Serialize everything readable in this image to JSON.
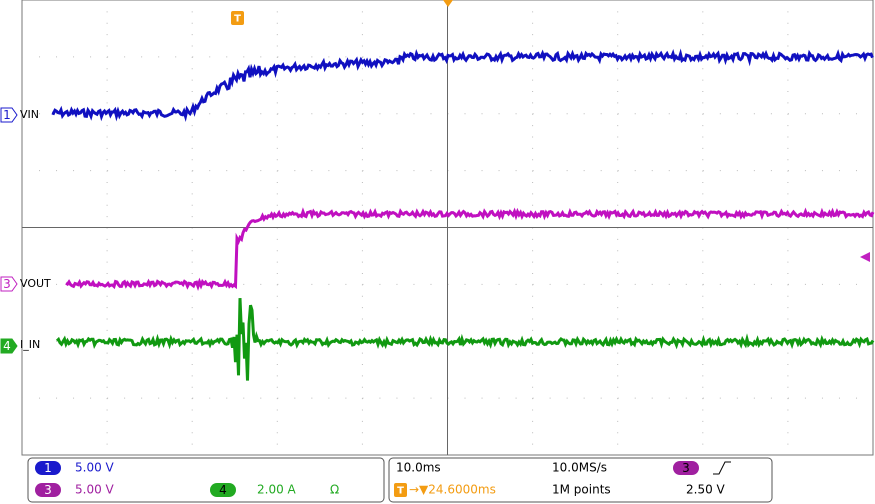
{
  "screen": {
    "trigger_marker": "T",
    "channels": [
      {
        "number": "1",
        "label": "VIN"
      },
      {
        "number": "3",
        "label": "VOUT"
      },
      {
        "number": "4",
        "label": "I_IN"
      }
    ]
  },
  "status": {
    "ch1": {
      "number": "1",
      "scale": "5.00 V"
    },
    "ch3": {
      "number": "3",
      "scale": "5.00 V"
    },
    "ch4": {
      "number": "4",
      "scale": "2.00 A",
      "termination": "Ω"
    },
    "timebase": "10.0ms",
    "trigger_icon": "T",
    "trigger_delay": "→▼24.6000ms",
    "sample_rate": "10.0MS/s",
    "record_length": "1M points",
    "trigger_source": "3",
    "trigger_level": "2.50 V"
  }
}
